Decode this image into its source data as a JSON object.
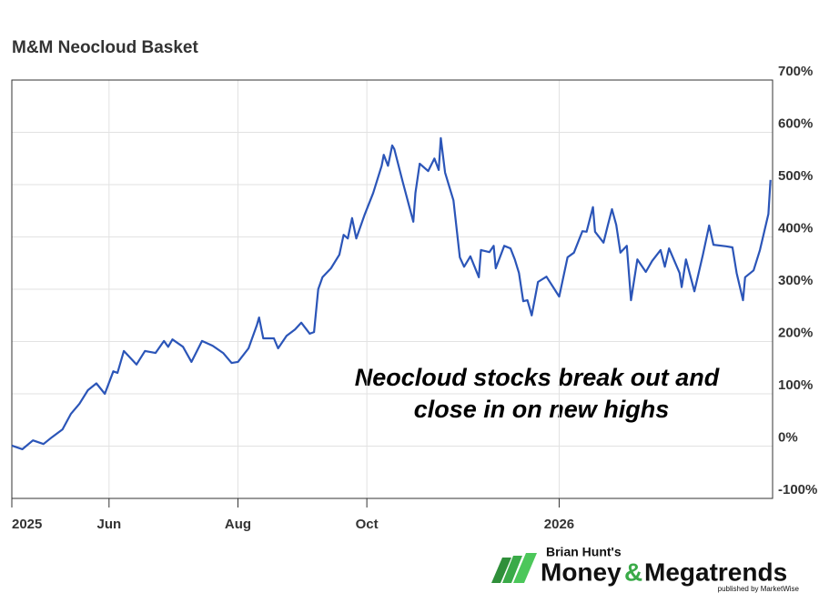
{
  "chart_data": {
    "type": "line",
    "title": "M&M Neocloud Basket",
    "annotation": [
      "Neocloud stocks break out and",
      "close in on new highs"
    ],
    "x": [
      0,
      5,
      10,
      15,
      19,
      24,
      28,
      32,
      36,
      40,
      44,
      48,
      50,
      53,
      59,
      63,
      68,
      72,
      74,
      76,
      81,
      85,
      90,
      95,
      100,
      104,
      107,
      112,
      116,
      117,
      119,
      124,
      126,
      130,
      134,
      137,
      141,
      143,
      145,
      147,
      151,
      155,
      157,
      159,
      161,
      163,
      167,
      171,
      175,
      176,
      178,
      180,
      181,
      185,
      190,
      191,
      193,
      197,
      200,
      202,
      203,
      205,
      209,
      212,
      214,
      217,
      221,
      222,
      226,
      228,
      229,
      233,
      236,
      238,
      240,
      242,
      244,
      246,
      249,
      253,
      256,
      259,
      263,
      266,
      270,
      272,
      275,
      276,
      280,
      282,
      284,
      286,
      288,
      291,
      293,
      296,
      300,
      303,
      307,
      309,
      311,
      316,
      317,
      319,
      323,
      327,
      330,
      332,
      338,
      341,
      343,
      346,
      347,
      351,
      354,
      358,
      359
    ],
    "series": [
      {
        "name": "M&M Neocloud Basket",
        "color": "#2b55b8",
        "values": [
          1,
          -6,
          11,
          4,
          17,
          32,
          62,
          81,
          107,
          120,
          100,
          143,
          140,
          182,
          156,
          182,
          178,
          201,
          190,
          204,
          190,
          161,
          201,
          192,
          178,
          159,
          161,
          187,
          232,
          246,
          206,
          206,
          187,
          211,
          223,
          236,
          215,
          218,
          300,
          323,
          340,
          366,
          404,
          397,
          436,
          397,
          443,
          484,
          536,
          557,
          536,
          575,
          568,
          505,
          429,
          484,
          540,
          526,
          550,
          528,
          589,
          523,
          470,
          361,
          343,
          363,
          323,
          375,
          371,
          383,
          340,
          383,
          378,
          357,
          331,
          277,
          279,
          250,
          314,
          324,
          305,
          286,
          361,
          370,
          411,
          410,
          457,
          410,
          389,
          422,
          453,
          423,
          370,
          383,
          279,
          357,
          333,
          354,
          375,
          343,
          378,
          331,
          304,
          357,
          296,
          366,
          422,
          385,
          382,
          380,
          331,
          279,
          323,
          336,
          375,
          444,
          509
        ]
      }
    ],
    "xlim": [
      0,
      360
    ],
    "xticks": [
      {
        "value": 0,
        "label": "2025"
      },
      {
        "value": 46,
        "label": "Jun"
      },
      {
        "value": 107,
        "label": "Aug"
      },
      {
        "value": 168,
        "label": "Oct"
      },
      {
        "value": 259,
        "label": "2026"
      }
    ],
    "ylim": [
      -100,
      700
    ],
    "yticks": [
      {
        "value": -100,
        "label": "-100%"
      },
      {
        "value": 0,
        "label": "0%"
      },
      {
        "value": 100,
        "label": "100%"
      },
      {
        "value": 200,
        "label": "200%"
      },
      {
        "value": 300,
        "label": "300%"
      },
      {
        "value": 400,
        "label": "400%"
      },
      {
        "value": 500,
        "label": "500%"
      },
      {
        "value": 600,
        "label": "600%"
      },
      {
        "value": 700,
        "label": "700%"
      }
    ],
    "grid": true
  },
  "logo": {
    "byline": "Brian Hunt's",
    "word1": "Money",
    "amp": "&",
    "word2": "Megatrends",
    "publisher": "published by MarketWise"
  }
}
